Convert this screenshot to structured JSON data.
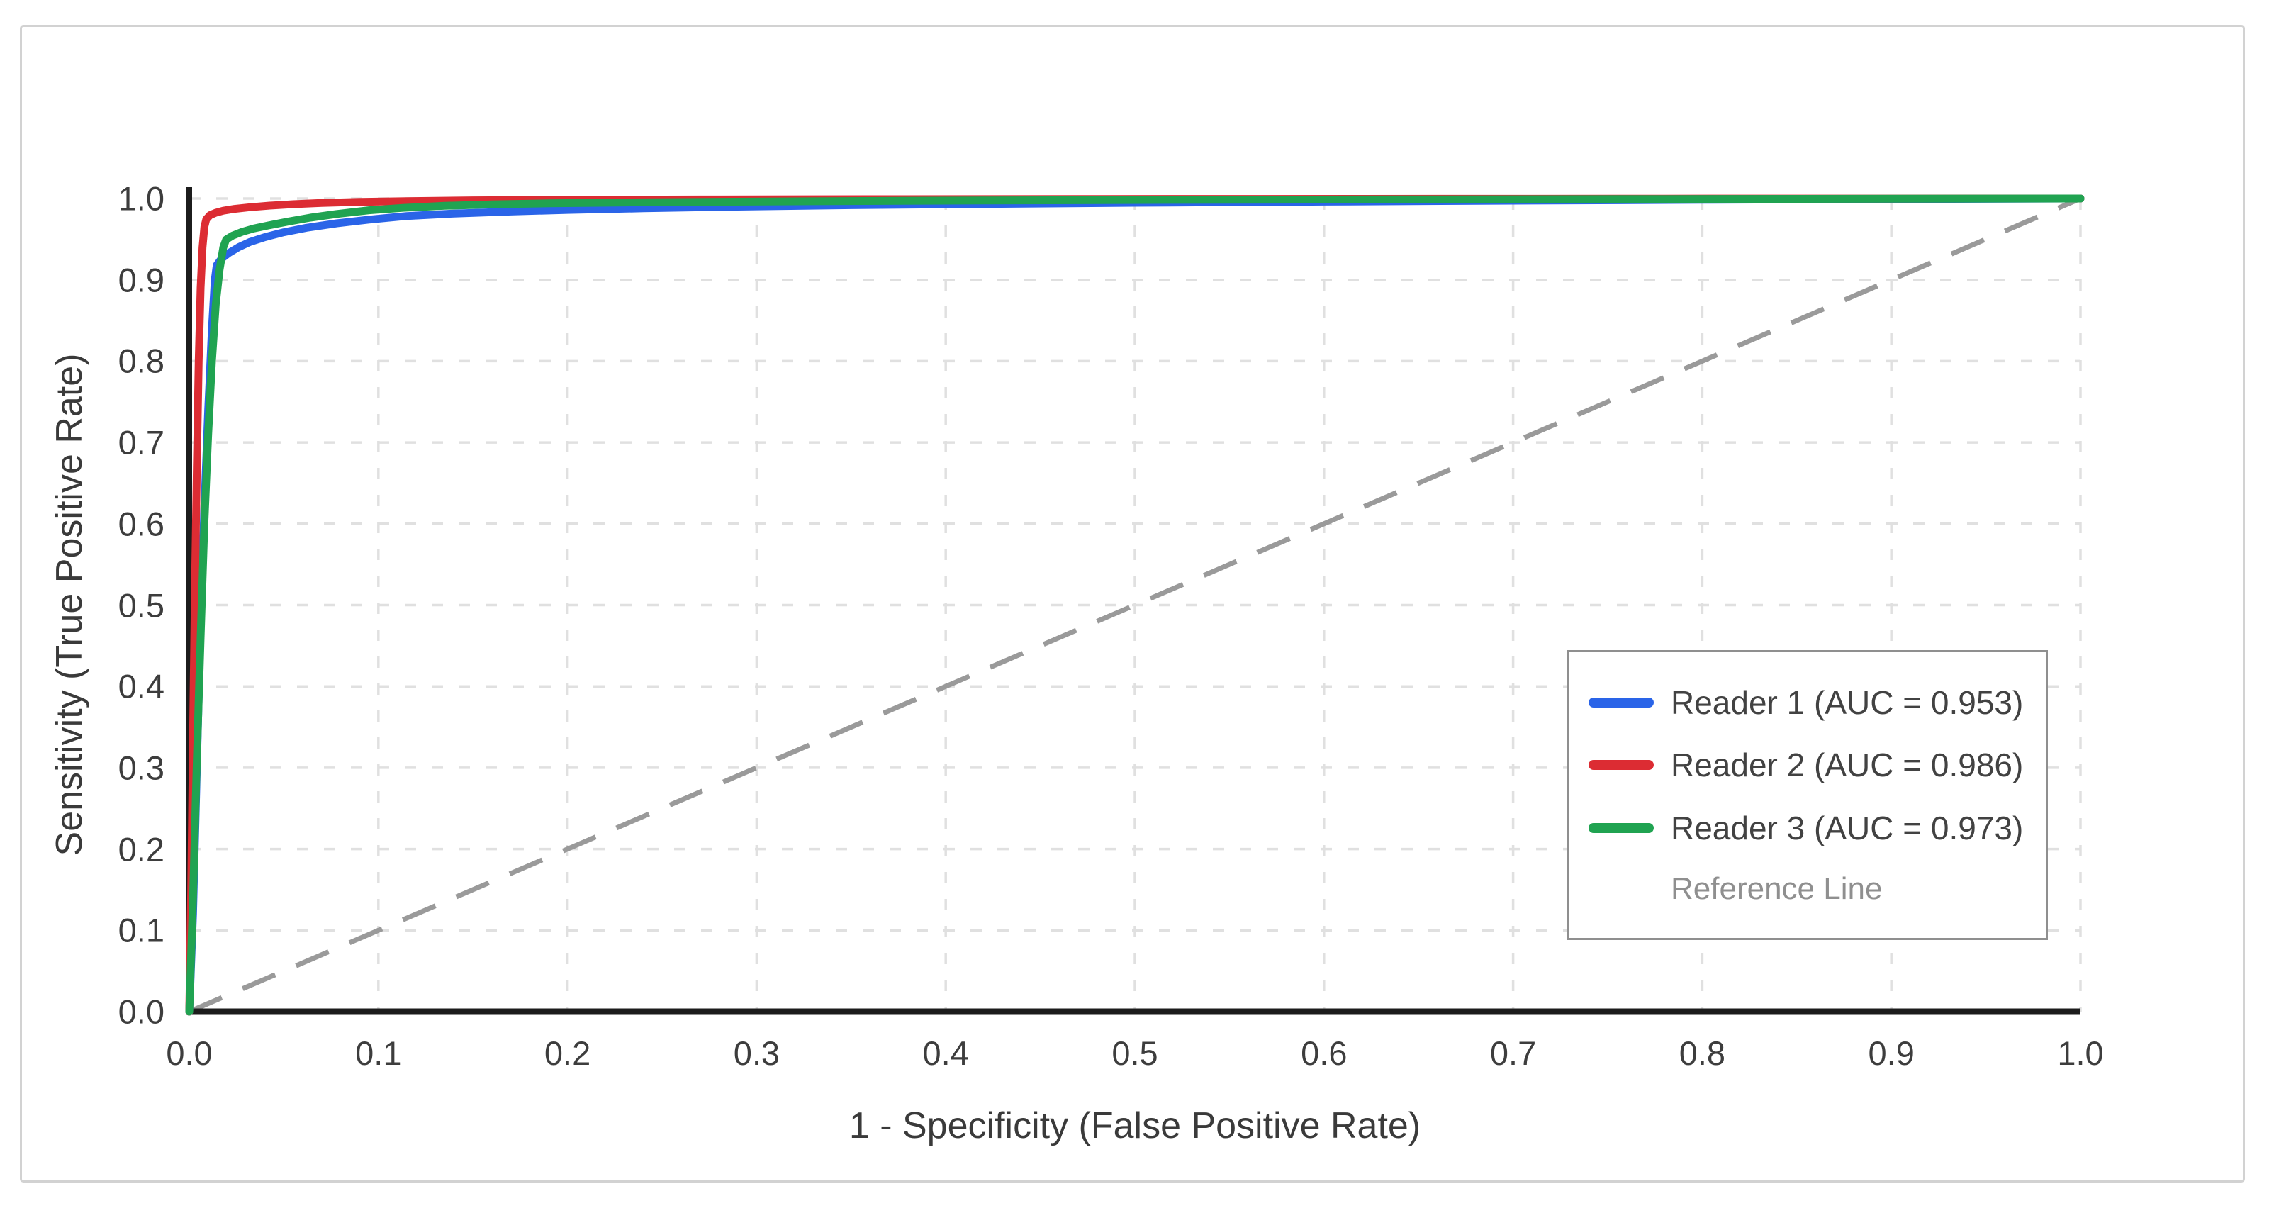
{
  "chart_data": {
    "type": "line",
    "title": "",
    "xlabel": "1 - Specificity (False Positive Rate)",
    "ylabel": "Sensitivity (True Positive Rate)",
    "xlim": [
      0.0,
      1.0
    ],
    "ylim": [
      0.0,
      1.0
    ],
    "x_tick_labels": [
      "0.0",
      "0.1",
      "0.2",
      "0.3",
      "0.4",
      "0.5",
      "0.6",
      "0.7",
      "0.8",
      "0.9",
      "1.0"
    ],
    "y_tick_labels": [
      "0.0",
      "0.1",
      "0.2",
      "0.3",
      "0.4",
      "0.5",
      "0.6",
      "0.7",
      "0.8",
      "0.9",
      "1.0"
    ],
    "grid": true,
    "grid_color": "#e0e0e0",
    "axis_color": "#1c1c1c",
    "tick_text_color": "#3d3d3d",
    "legend_position": "lower right",
    "series": [
      {
        "name": "Reader 1",
        "auc": "0.953",
        "legend_label": "Reader 1 (AUC = 0.953)",
        "color": "#2a64e8",
        "points": [
          [
            0,
            0
          ],
          [
            0.002,
            0.12
          ],
          [
            0.004,
            0.3
          ],
          [
            0.006,
            0.48
          ],
          [
            0.008,
            0.62
          ],
          [
            0.01,
            0.74
          ],
          [
            0.012,
            0.84
          ],
          [
            0.0135,
            0.9
          ],
          [
            0.0145,
            0.918
          ],
          [
            0.017,
            0.926
          ],
          [
            0.021,
            0.933
          ],
          [
            0.026,
            0.94
          ],
          [
            0.032,
            0.9465
          ],
          [
            0.04,
            0.9525
          ],
          [
            0.05,
            0.9585
          ],
          [
            0.062,
            0.964
          ],
          [
            0.078,
            0.9695
          ],
          [
            0.095,
            0.974
          ],
          [
            0.115,
            0.9785
          ],
          [
            0.14,
            0.9815
          ],
          [
            0.17,
            0.984
          ],
          [
            0.2,
            0.986
          ],
          [
            0.24,
            0.988
          ],
          [
            0.29,
            0.99
          ],
          [
            0.35,
            0.9918
          ],
          [
            0.42,
            0.9933
          ],
          [
            0.5,
            0.9948
          ],
          [
            0.6,
            0.9962
          ],
          [
            0.7,
            0.9974
          ],
          [
            0.8,
            0.9984
          ],
          [
            0.9,
            0.9993
          ],
          [
            1,
            1
          ]
        ]
      },
      {
        "name": "Reader 2",
        "auc": "0.986",
        "legend_label": "Reader 2 (AUC = 0.986)",
        "color": "#dc2c33",
        "points": [
          [
            0,
            0
          ],
          [
            0.001,
            0.15
          ],
          [
            0.002,
            0.34
          ],
          [
            0.003,
            0.52
          ],
          [
            0.004,
            0.67
          ],
          [
            0.005,
            0.8
          ],
          [
            0.006,
            0.89
          ],
          [
            0.007,
            0.94
          ],
          [
            0.008,
            0.965
          ],
          [
            0.009,
            0.9745
          ],
          [
            0.011,
            0.9795
          ],
          [
            0.014,
            0.9825
          ],
          [
            0.018,
            0.985
          ],
          [
            0.024,
            0.9873
          ],
          [
            0.032,
            0.9893
          ],
          [
            0.042,
            0.9912
          ],
          [
            0.055,
            0.993
          ],
          [
            0.07,
            0.9945
          ],
          [
            0.09,
            0.9958
          ],
          [
            0.115,
            0.9968
          ],
          [
            0.15,
            0.9977
          ],
          [
            0.2,
            0.9983
          ],
          [
            0.27,
            0.9988
          ],
          [
            0.36,
            0.9991
          ],
          [
            0.48,
            0.9994
          ],
          [
            0.62,
            0.9996
          ],
          [
            0.78,
            0.9998
          ],
          [
            1,
            1
          ]
        ]
      },
      {
        "name": "Reader 3",
        "auc": "0.973",
        "legend_label": "Reader 3 (AUC = 0.973)",
        "color": "#20a351",
        "points": [
          [
            0,
            0
          ],
          [
            0.002,
            0.14
          ],
          [
            0.004,
            0.31
          ],
          [
            0.006,
            0.46
          ],
          [
            0.008,
            0.6
          ],
          [
            0.01,
            0.71
          ],
          [
            0.012,
            0.8
          ],
          [
            0.014,
            0.87
          ],
          [
            0.016,
            0.912
          ],
          [
            0.018,
            0.94
          ],
          [
            0.0195,
            0.9495
          ],
          [
            0.023,
            0.9545
          ],
          [
            0.028,
            0.959
          ],
          [
            0.034,
            0.963
          ],
          [
            0.042,
            0.967
          ],
          [
            0.052,
            0.9715
          ],
          [
            0.064,
            0.9765
          ],
          [
            0.078,
            0.981
          ],
          [
            0.095,
            0.9855
          ],
          [
            0.113,
            0.9885
          ],
          [
            0.135,
            0.991
          ],
          [
            0.16,
            0.9928
          ],
          [
            0.19,
            0.9941
          ],
          [
            0.23,
            0.9951
          ],
          [
            0.28,
            0.996
          ],
          [
            0.34,
            0.9968
          ],
          [
            0.42,
            0.9976
          ],
          [
            0.52,
            0.9983
          ],
          [
            0.64,
            0.9989
          ],
          [
            0.78,
            0.9994
          ],
          [
            0.9,
            0.9997
          ],
          [
            1,
            1
          ]
        ]
      }
    ],
    "reference_line": {
      "legend_label": "Reference Line",
      "color": "#9a9a9a",
      "style": "dashed",
      "from": [
        0,
        0
      ],
      "to": [
        1,
        1
      ],
      "label_color": "#8f8f8f"
    }
  }
}
